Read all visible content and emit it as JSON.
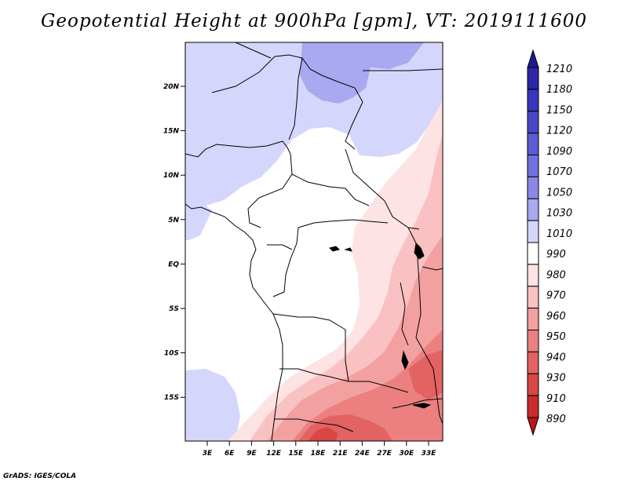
{
  "title": "Geopotential Height at 900hPa [gpm], VT: 2019111600",
  "credit": "GrADS: IGES/COLA",
  "map": {
    "lat_ticks": [
      "20N",
      "15N",
      "10N",
      "5N",
      "EQ",
      "5S",
      "10S",
      "15S"
    ],
    "lon_ticks": [
      "3E",
      "6E",
      "9E",
      "12E",
      "15E",
      "18E",
      "21E",
      "24E",
      "27E",
      "30E",
      "33E"
    ]
  },
  "colorbar": {
    "levels": [
      "1210",
      "1180",
      "1150",
      "1120",
      "1090",
      "1070",
      "1050",
      "1030",
      "1010",
      "990",
      "980",
      "970",
      "960",
      "950",
      "940",
      "930",
      "910",
      "890"
    ],
    "colors": [
      "#1f1a8c",
      "#2b26a8",
      "#3a35bd",
      "#4b47c9",
      "#5d5ad3",
      "#7270de",
      "#8a88e7",
      "#a9a8f0",
      "#d5d6fb",
      "#ffffff",
      "#fde3e3",
      "#f9c1c1",
      "#f3a0a0",
      "#ec8080",
      "#e36262",
      "#d84646",
      "#c92c2c",
      "#b81818"
    ]
  },
  "chart_data": {
    "type": "heatmap",
    "variable": "Geopotential Height at 900hPa",
    "units": "gpm",
    "valid_time": "2019111600",
    "lon_range": [
      0,
      35
    ],
    "lat_range": [
      -20,
      24
    ],
    "contour_levels": [
      1210,
      1180,
      1150,
      1120,
      1090,
      1070,
      1050,
      1030,
      1010,
      990,
      980,
      970,
      960,
      950,
      940,
      930,
      910,
      890
    ],
    "regions": [
      {
        "name": "north",
        "range_gpm": [
          1010,
          1050
        ]
      },
      {
        "name": "northeast",
        "range_gpm": [
          1030,
          1050
        ]
      },
      {
        "name": "central",
        "range_gpm": [
          990,
          1010
        ]
      },
      {
        "name": "east",
        "range_gpm": [
          970,
          990
        ]
      },
      {
        "name": "southeast",
        "range_gpm": [
          930,
          970
        ]
      },
      {
        "name": "southwest",
        "range_gpm": [
          1010,
          1030
        ]
      }
    ]
  }
}
